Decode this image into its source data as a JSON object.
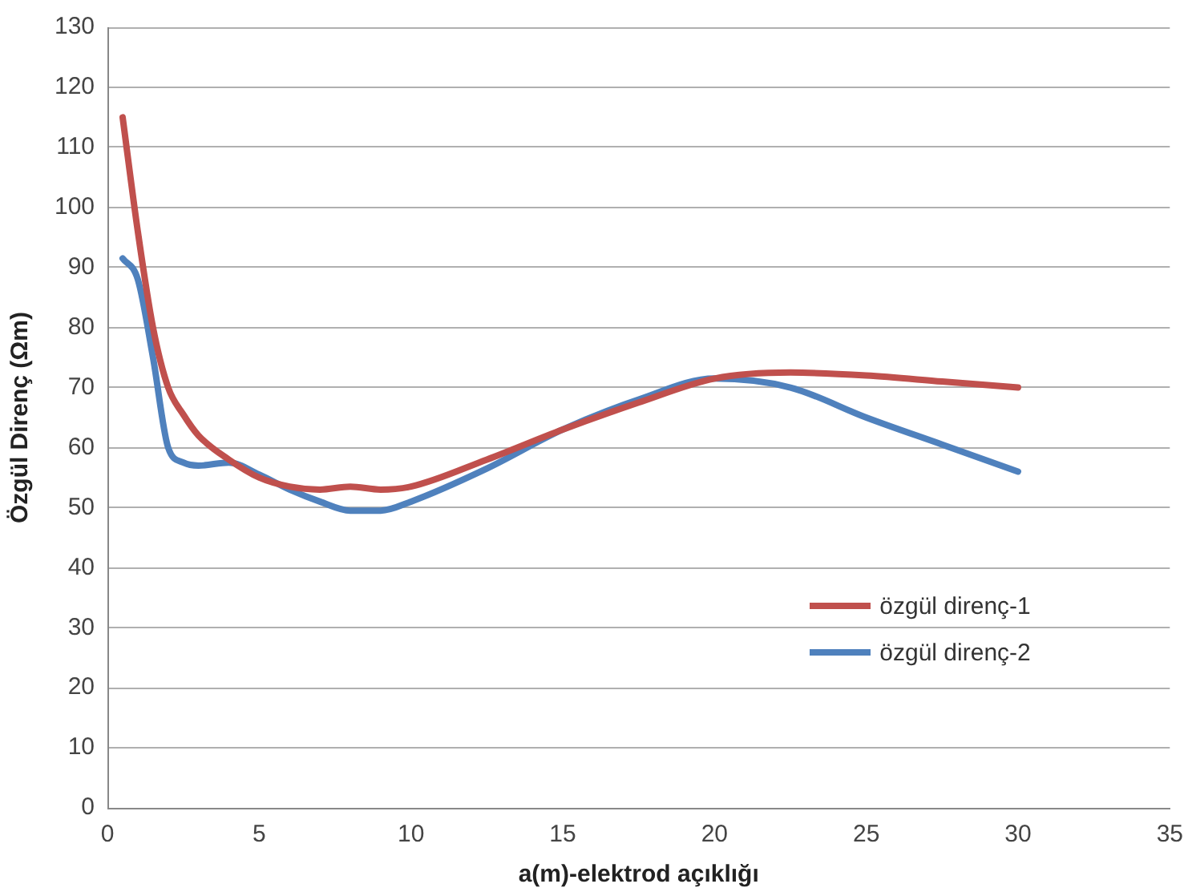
{
  "chart_data": {
    "type": "line",
    "xlabel": "a(m)-elektrod açıklığı",
    "ylabel": "Özgül Direnç (Ωm)",
    "xlim": [
      0,
      35
    ],
    "xticks": [
      0,
      5,
      10,
      15,
      20,
      25,
      30,
      35
    ],
    "ylim": [
      0,
      130
    ],
    "yticks": [
      0,
      10,
      20,
      30,
      40,
      50,
      60,
      70,
      80,
      90,
      100,
      110,
      120,
      130
    ],
    "grid": "y",
    "legend": "right",
    "marker": "none",
    "line_style": "solid",
    "x": [
      0.5,
      1,
      1.5,
      2,
      2.5,
      3,
      4,
      5,
      6,
      7,
      8,
      9,
      10,
      12.5,
      15,
      17.5,
      20,
      22.5,
      25,
      27.5,
      30
    ],
    "series": [
      {
        "name": "özgül direnç-1",
        "color": "#c0504d",
        "values": [
          115,
          96,
          80,
          70,
          65.5,
          62,
          58,
          55,
          53.5,
          53,
          53.5,
          53,
          53.5,
          58,
          63,
          67.5,
          71.5,
          72.5,
          72,
          71,
          70
        ]
      },
      {
        "name": "özgül direnç-2",
        "color": "#4f81bd",
        "values": [
          91.5,
          88,
          75,
          60,
          57.5,
          57,
          57.5,
          55.5,
          53,
          51,
          49.5,
          49.5,
          51,
          56.5,
          63,
          68,
          71.5,
          70,
          65,
          60.5,
          56
        ]
      }
    ]
  }
}
